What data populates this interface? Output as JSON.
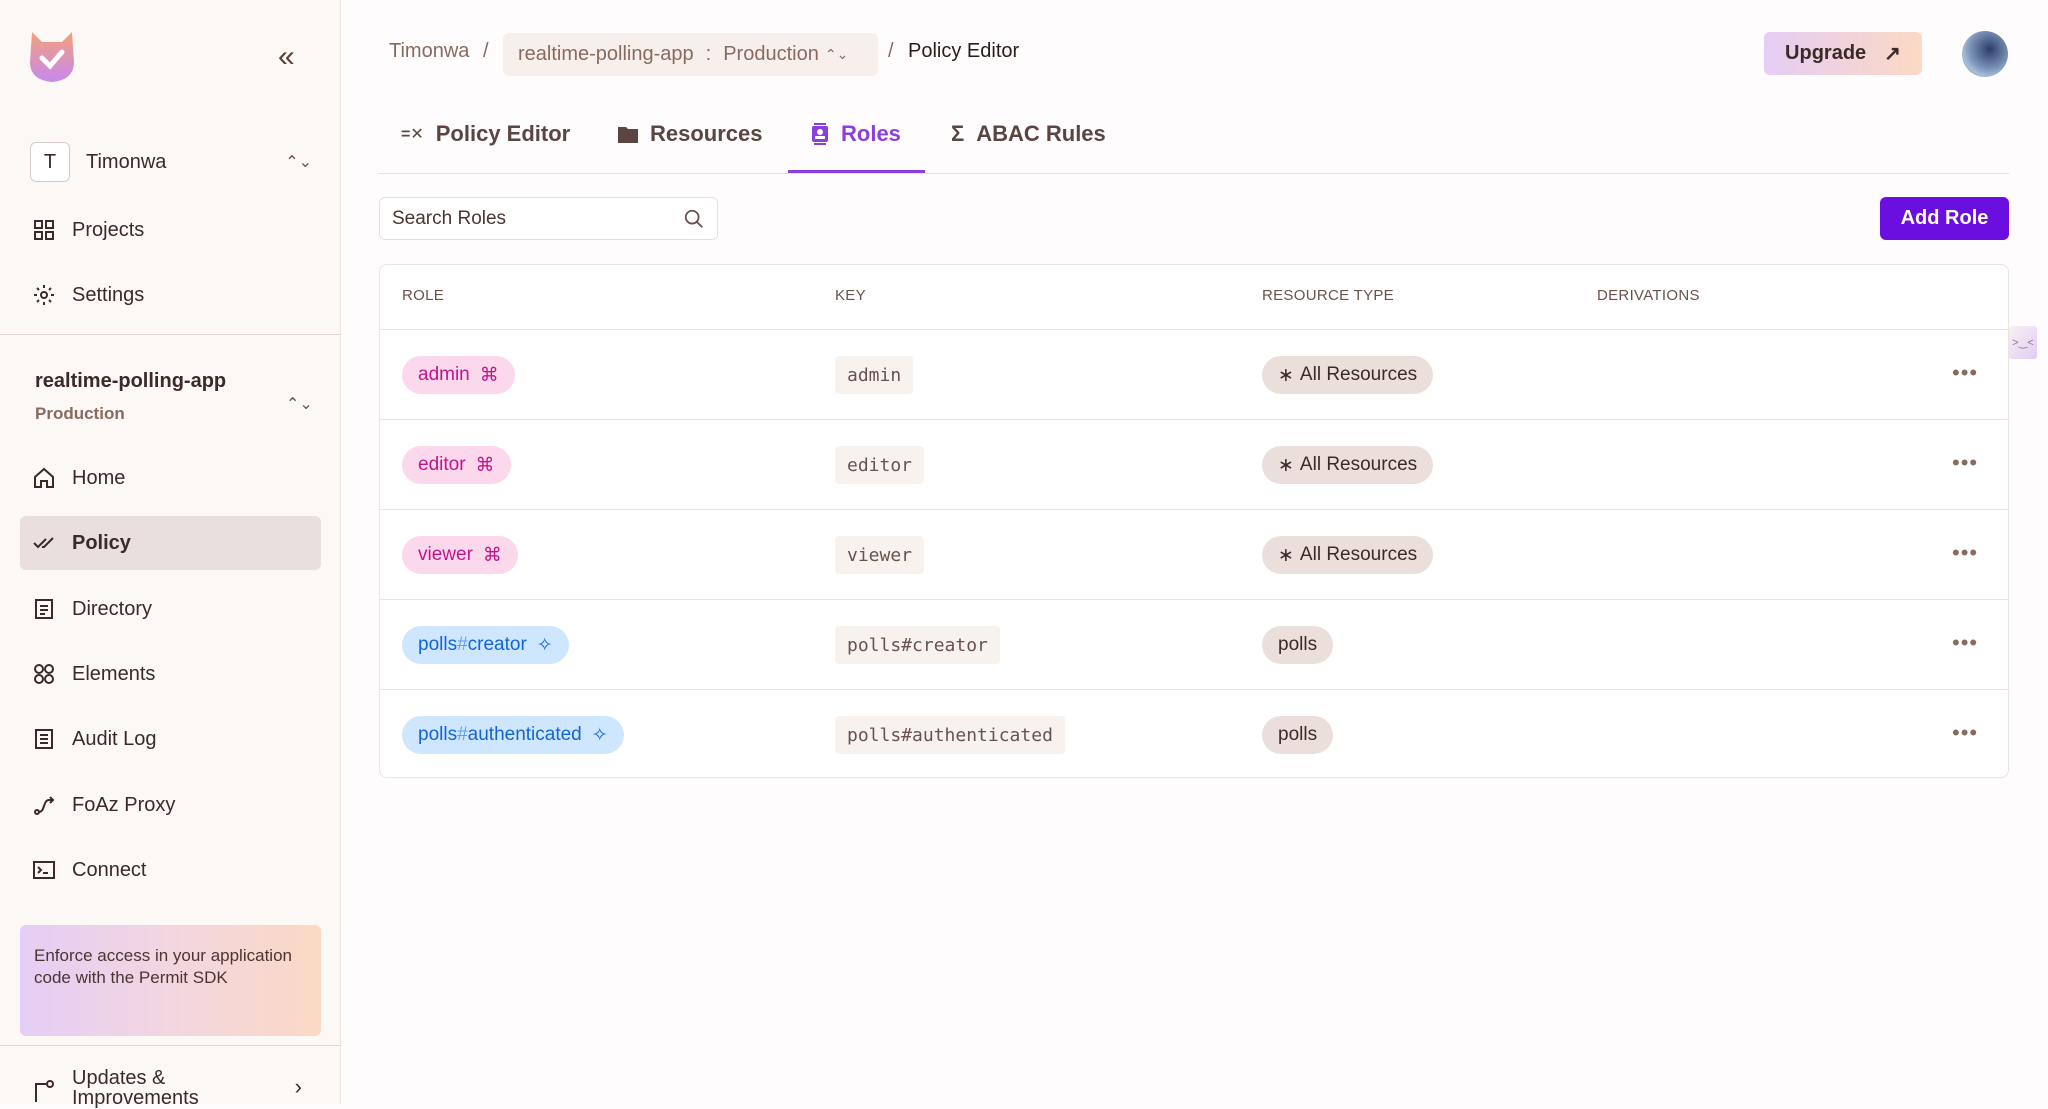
{
  "sidebar": {
    "org": {
      "initial": "T",
      "name": "Timonwa"
    },
    "top_items": [
      {
        "label": "Projects",
        "icon": "grid-icon"
      },
      {
        "label": "Settings",
        "icon": "gear-icon"
      }
    ],
    "project": {
      "name": "realtime-polling-app",
      "env": "Production"
    },
    "items": [
      {
        "label": "Home",
        "icon": "home-icon"
      },
      {
        "label": "Policy",
        "icon": "policy-icon",
        "active": true
      },
      {
        "label": "Directory",
        "icon": "directory-icon"
      },
      {
        "label": "Elements",
        "icon": "elements-icon"
      },
      {
        "label": "Audit Log",
        "icon": "audit-log-icon"
      },
      {
        "label": "FoAz Proxy",
        "icon": "proxy-icon"
      },
      {
        "label": "Connect",
        "icon": "terminal-icon"
      }
    ],
    "promo": "Enforce access in your application code with the Permit SDK",
    "updates": "Updates & Improvements"
  },
  "header": {
    "breadcrumb": {
      "org": "Timonwa",
      "project": "realtime-polling-app",
      "sep": ":",
      "env": "Production",
      "page": "Policy Editor"
    },
    "upgrade": "Upgrade"
  },
  "tabs": [
    {
      "label": "Policy Editor"
    },
    {
      "label": "Resources"
    },
    {
      "label": "Roles",
      "active": true
    },
    {
      "label": "ABAC Rules"
    }
  ],
  "search": {
    "placeholder": "Search Roles"
  },
  "add_role": "Add Role",
  "table": {
    "headers": [
      "ROLE",
      "KEY",
      "RESOURCE TYPE",
      "DERIVATIONS"
    ],
    "rows": [
      {
        "role": "admin",
        "type": "top",
        "key": "admin",
        "resource": "All Resources"
      },
      {
        "role": "editor",
        "type": "top",
        "key": "editor",
        "resource": "All Resources"
      },
      {
        "role": "viewer",
        "type": "top",
        "key": "viewer",
        "resource": "All Resources"
      },
      {
        "role_prefix": "polls",
        "role_suffix": "creator",
        "type": "resource",
        "key": "polls#creator",
        "resource": "polls"
      },
      {
        "role_prefix": "polls",
        "role_suffix": "authenticated",
        "type": "resource",
        "key": "polls#authenticated",
        "resource": "polls"
      }
    ]
  },
  "colors": {
    "accent": "#6a0fe0",
    "active_tab": "#8a3fe0",
    "role_pink": "#c0168c",
    "role_blue": "#1364d8"
  }
}
